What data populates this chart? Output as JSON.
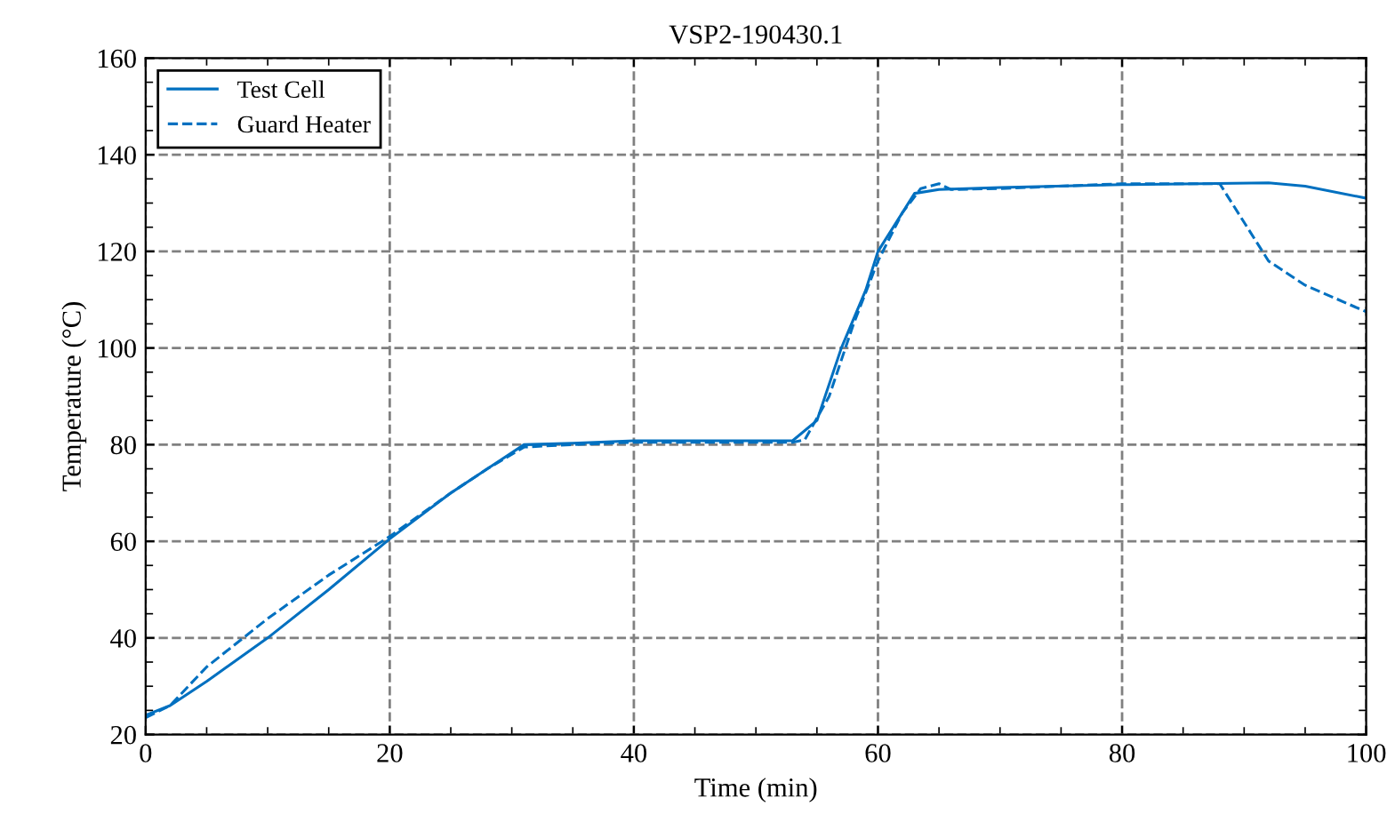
{
  "chart_data": {
    "type": "line",
    "title": "VSP2-190430.1",
    "xlabel": "Time (min)",
    "ylabel": "Temperature (°C)",
    "xlim": [
      0,
      100
    ],
    "ylim": [
      20,
      160
    ],
    "xticks": [
      0,
      20,
      40,
      60,
      80,
      100
    ],
    "yticks": [
      20,
      40,
      60,
      80,
      100,
      120,
      140,
      160
    ],
    "grid": true,
    "legend": "top left",
    "series": [
      {
        "name": "Test Cell",
        "color": "#0070c0",
        "line_style": "solid",
        "x": [
          0,
          2,
          5,
          10,
          15,
          20,
          25,
          28,
          31,
          35,
          40,
          45,
          50,
          53,
          55,
          57,
          59,
          60,
          62,
          63,
          65,
          70,
          80,
          92,
          95,
          100
        ],
        "values": [
          24,
          26,
          31,
          40,
          50,
          60.5,
          70,
          75,
          80,
          80.3,
          80.8,
          80.8,
          80.8,
          80.8,
          85,
          100,
          112,
          120,
          128,
          132,
          132.8,
          133.2,
          133.8,
          134.2,
          133.5,
          131
        ]
      },
      {
        "name": "Guard Heater",
        "color": "#0070c0",
        "line_style": "dashed",
        "x": [
          0,
          2,
          5,
          10,
          15,
          20,
          25,
          28,
          31,
          35,
          40,
          45,
          53,
          54,
          56,
          58,
          60,
          62,
          63.5,
          65,
          66,
          70,
          80,
          88,
          90,
          92,
          95,
          100
        ],
        "values": [
          23.5,
          26,
          34,
          44,
          53,
          61,
          70,
          75,
          79.5,
          80,
          80.5,
          80.5,
          80.5,
          81,
          90,
          105,
          118,
          128,
          133,
          134,
          132.8,
          133,
          134,
          134,
          126,
          118,
          113,
          107.5
        ]
      }
    ]
  }
}
